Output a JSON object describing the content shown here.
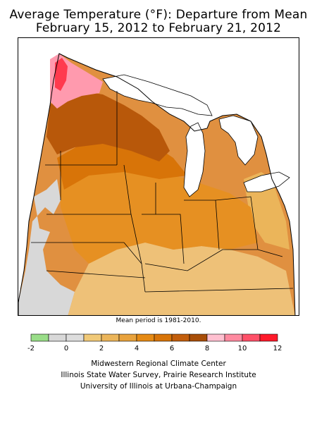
{
  "title_line1": "Average Temperature (°F): Departure from Mean",
  "title_line2": "February 15, 2012 to February 21, 2012",
  "note": "Mean period is 1981-2010.",
  "legend": {
    "colors": [
      "#99dd88",
      "#d8d8d8",
      "#dddddd",
      "#f0c978",
      "#ebb55a",
      "#e8a23c",
      "#e58a14",
      "#d87408",
      "#c25e0c",
      "#a84e08",
      "#ffc0d0",
      "#ff8aa0",
      "#ff5068",
      "#ff1a2a"
    ],
    "tick_labels": [
      "-2",
      "0",
      "2",
      "4",
      "6",
      "8",
      "10",
      "12"
    ]
  },
  "credits": [
    "Midwestern Regional Climate Center",
    "Illinois State Water Survey, Prairie Research Institute",
    "University of Illinois at Urbana-Champaign"
  ]
}
